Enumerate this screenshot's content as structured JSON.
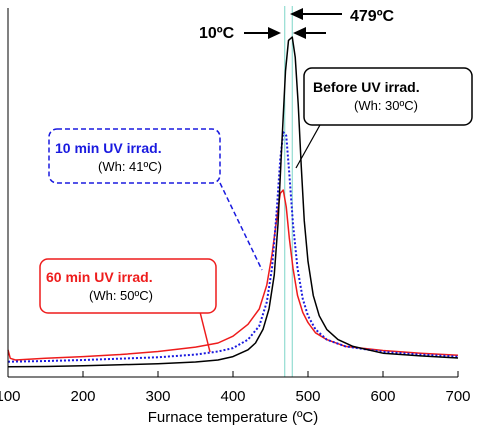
{
  "chart_data": {
    "type": "line",
    "xlabel": "Furnace temperature (ºC)",
    "ylabel": "",
    "xlim": [
      100,
      700
    ],
    "xticks": [
      "100",
      "200",
      "300",
      "400",
      "500",
      "600",
      "700"
    ],
    "grid": false,
    "series": [
      {
        "name": "Before UV irrad.",
        "color": "#000000",
        "style": "solid",
        "points": [
          [
            100,
            0.03
          ],
          [
            150,
            0.031
          ],
          [
            200,
            0.033
          ],
          [
            250,
            0.036
          ],
          [
            300,
            0.039
          ],
          [
            350,
            0.044
          ],
          [
            380,
            0.05
          ],
          [
            400,
            0.06
          ],
          [
            420,
            0.08
          ],
          [
            430,
            0.1
          ],
          [
            440,
            0.14
          ],
          [
            448,
            0.2
          ],
          [
            455,
            0.3
          ],
          [
            460,
            0.45
          ],
          [
            465,
            0.68
          ],
          [
            470,
            0.9
          ],
          [
            474,
            0.99
          ],
          [
            479,
            1.0
          ],
          [
            483,
            0.94
          ],
          [
            487,
            0.8
          ],
          [
            491,
            0.62
          ],
          [
            495,
            0.46
          ],
          [
            500,
            0.34
          ],
          [
            507,
            0.24
          ],
          [
            515,
            0.18
          ],
          [
            525,
            0.14
          ],
          [
            540,
            0.11
          ],
          [
            560,
            0.09
          ],
          [
            580,
            0.08
          ],
          [
            600,
            0.07
          ],
          [
            650,
            0.062
          ],
          [
            700,
            0.056
          ]
        ]
      },
      {
        "name": "10 min UV irrad.",
        "color": "#1a1adf",
        "style": "dotted",
        "points": [
          [
            100,
            0.045
          ],
          [
            150,
            0.047
          ],
          [
            200,
            0.05
          ],
          [
            250,
            0.054
          ],
          [
            300,
            0.058
          ],
          [
            350,
            0.066
          ],
          [
            380,
            0.075
          ],
          [
            400,
            0.085
          ],
          [
            420,
            0.11
          ],
          [
            435,
            0.15
          ],
          [
            445,
            0.22
          ],
          [
            452,
            0.32
          ],
          [
            458,
            0.48
          ],
          [
            463,
            0.64
          ],
          [
            467,
            0.72
          ],
          [
            471,
            0.71
          ],
          [
            475,
            0.6
          ],
          [
            480,
            0.45
          ],
          [
            486,
            0.32
          ],
          [
            493,
            0.23
          ],
          [
            500,
            0.18
          ],
          [
            510,
            0.14
          ],
          [
            525,
            0.11
          ],
          [
            550,
            0.09
          ],
          [
            600,
            0.074
          ],
          [
            650,
            0.066
          ],
          [
            700,
            0.06
          ]
        ]
      },
      {
        "name": "60 min UV irrad.",
        "color": "#ee1c1c",
        "style": "solid",
        "points": [
          [
            100,
            0.08
          ],
          [
            103,
            0.055
          ],
          [
            110,
            0.05
          ],
          [
            150,
            0.055
          ],
          [
            200,
            0.06
          ],
          [
            250,
            0.066
          ],
          [
            300,
            0.075
          ],
          [
            350,
            0.088
          ],
          [
            380,
            0.1
          ],
          [
            400,
            0.12
          ],
          [
            420,
            0.155
          ],
          [
            435,
            0.2
          ],
          [
            445,
            0.27
          ],
          [
            452,
            0.36
          ],
          [
            458,
            0.46
          ],
          [
            463,
            0.54
          ],
          [
            467,
            0.55
          ],
          [
            471,
            0.5
          ],
          [
            475,
            0.41
          ],
          [
            480,
            0.32
          ],
          [
            486,
            0.24
          ],
          [
            493,
            0.19
          ],
          [
            500,
            0.16
          ],
          [
            510,
            0.13
          ],
          [
            525,
            0.11
          ],
          [
            550,
            0.09
          ],
          [
            600,
            0.078
          ],
          [
            650,
            0.07
          ],
          [
            700,
            0.064
          ]
        ]
      }
    ],
    "annotations": {
      "peak_label": "479ºC",
      "shift_label": "10ºC",
      "before_title": "Before UV irrad.",
      "before_sub": "(Wh: 30ºC)",
      "uv10_title": "10 min UV irrad.",
      "uv10_sub": "(Wh: 41ºC)",
      "uv60_title": "60 min UV irrad.",
      "uv60_sub": "(Wh: 50ºC)"
    },
    "reference_lines": [
      469,
      479
    ],
    "reference_color": "#7fd6c8"
  }
}
